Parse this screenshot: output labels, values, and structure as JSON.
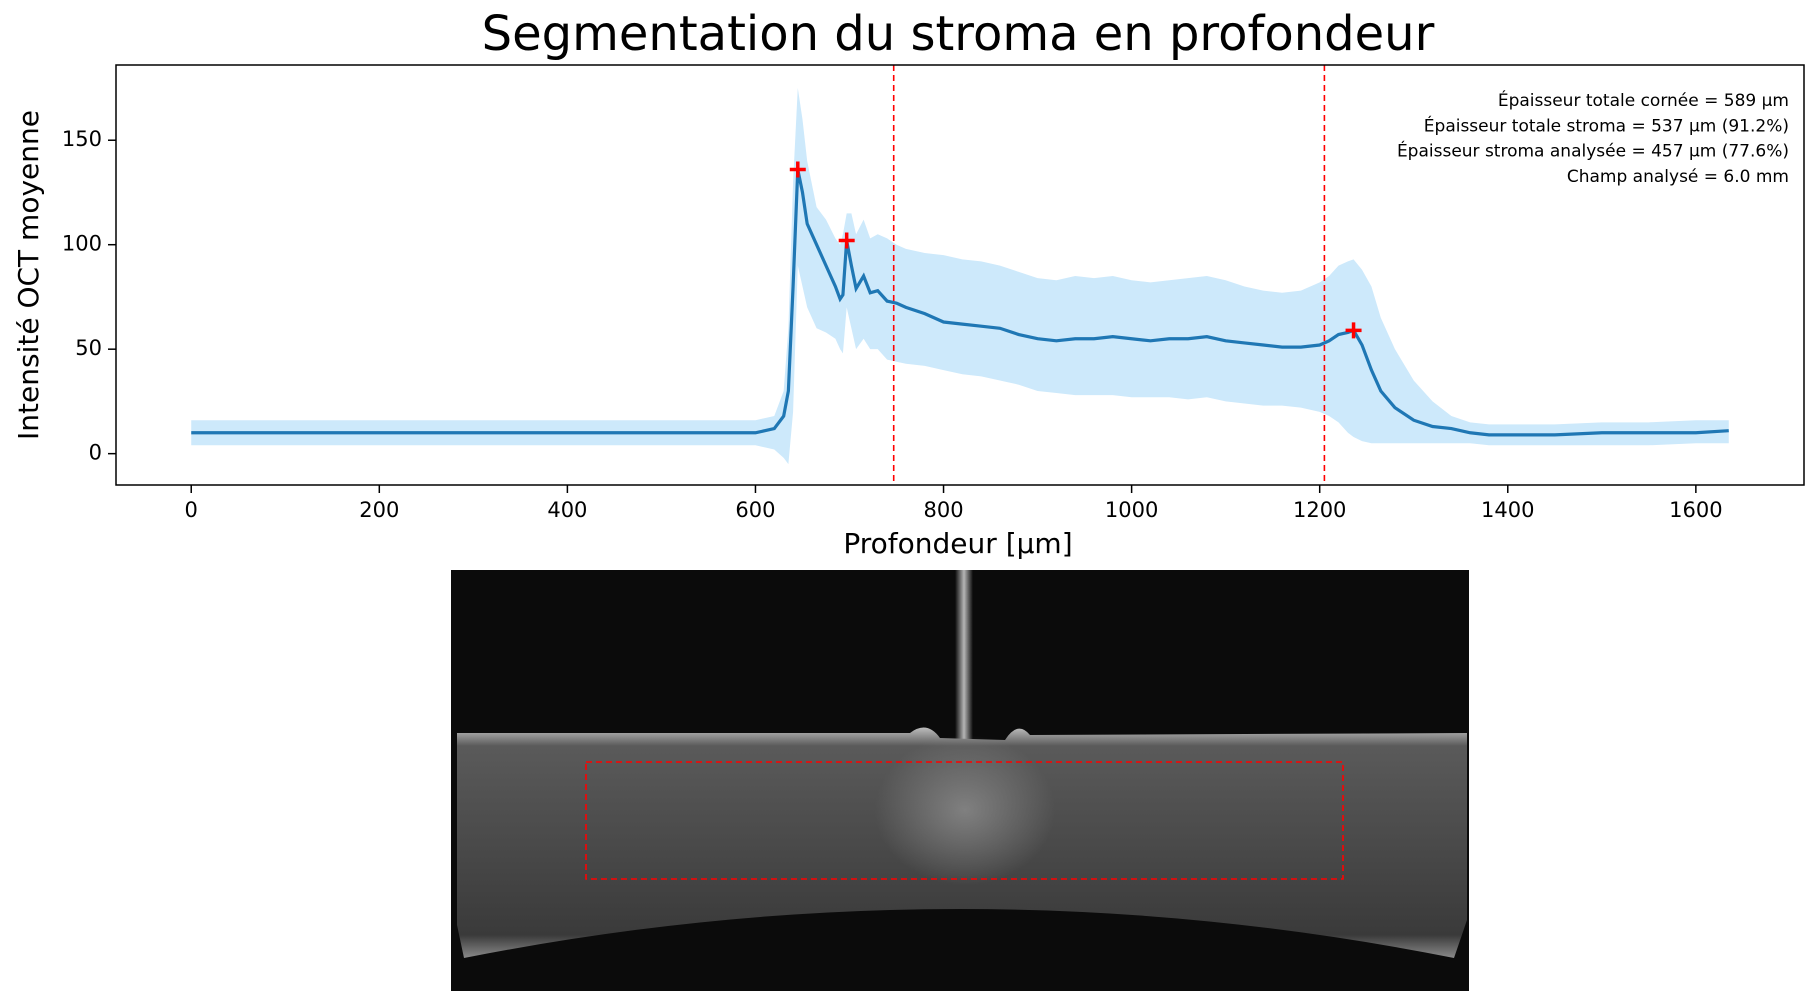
{
  "chart_data": {
    "type": "line",
    "title": "Segmentation du stroma en profondeur",
    "xlabel": "Profondeur [µm]",
    "ylabel": "Intensité OCT moyenne",
    "annotations": [
      "Épaisseur totale cornée = 589 µm",
      "Épaisseur totale stroma = 537 µm (91.2%)",
      "Épaisseur stroma analysée = 457 µm (77.6%)",
      "Champ analysé = 6.0 mm"
    ],
    "x": [
      0,
      20,
      40,
      60,
      80,
      100,
      120,
      140,
      160,
      180,
      200,
      220,
      240,
      260,
      280,
      300,
      320,
      340,
      360,
      380,
      400,
      420,
      440,
      460,
      480,
      500,
      520,
      540,
      560,
      580,
      600,
      610,
      620,
      630,
      635,
      640,
      645,
      650,
      655,
      665,
      675,
      685,
      690,
      693,
      697,
      702,
      707,
      715,
      722,
      730,
      740,
      750,
      760,
      780,
      800,
      820,
      840,
      860,
      880,
      900,
      920,
      940,
      960,
      980,
      1000,
      1020,
      1040,
      1060,
      1080,
      1100,
      1120,
      1140,
      1160,
      1180,
      1200,
      1210,
      1220,
      1230,
      1236,
      1245,
      1255,
      1265,
      1280,
      1300,
      1320,
      1340,
      1360,
      1380,
      1400,
      1450,
      1500,
      1550,
      1600,
      1635
    ],
    "series": [
      {
        "color": "#1f77b4",
        "values": [
          10,
          10,
          10,
          10,
          10,
          10,
          10,
          10,
          10,
          10,
          10,
          10,
          10,
          10,
          10,
          10,
          10,
          10,
          10,
          10,
          10,
          10,
          10,
          10,
          10,
          10,
          10,
          10,
          10,
          10,
          10,
          11,
          12,
          18,
          30,
          80,
          136,
          125,
          110,
          100,
          90,
          80,
          74,
          76,
          102,
          90,
          79,
          85,
          77,
          78,
          73,
          72,
          70,
          67,
          63,
          62,
          61,
          60,
          57,
          55,
          54,
          55,
          55,
          56,
          55,
          54,
          55,
          55,
          56,
          54,
          53,
          52,
          51,
          51,
          52,
          54,
          57,
          58,
          59,
          52,
          40,
          30,
          22,
          16,
          13,
          12,
          10,
          9,
          9,
          9,
          10,
          10,
          10,
          11
        ]
      }
    ],
    "band": {
      "color": "#cde9fb",
      "lower": [
        4,
        4,
        4,
        4,
        4,
        4,
        4,
        4,
        4,
        4,
        4,
        4,
        4,
        4,
        4,
        4,
        4,
        4,
        4,
        4,
        4,
        4,
        4,
        4,
        4,
        4,
        4,
        4,
        4,
        4,
        4,
        3,
        2,
        -2,
        -5,
        20,
        90,
        80,
        70,
        60,
        58,
        55,
        50,
        48,
        70,
        60,
        50,
        55,
        50,
        50,
        45,
        44,
        43,
        42,
        40,
        38,
        37,
        35,
        33,
        30,
        29,
        28,
        28,
        28,
        27,
        27,
        27,
        26,
        27,
        25,
        24,
        23,
        23,
        22,
        20,
        18,
        15,
        10,
        8,
        6,
        5,
        5,
        5,
        5,
        5,
        5,
        5,
        4,
        4,
        4,
        4,
        4,
        5,
        5
      ],
      "upper": [
        16,
        16,
        16,
        16,
        16,
        16,
        16,
        16,
        16,
        16,
        16,
        16,
        16,
        16,
        16,
        16,
        16,
        16,
        16,
        16,
        16,
        16,
        16,
        16,
        16,
        16,
        16,
        16,
        16,
        16,
        16,
        17,
        18,
        30,
        60,
        130,
        175,
        160,
        140,
        118,
        112,
        103,
        100,
        105,
        115,
        115,
        105,
        112,
        103,
        105,
        103,
        100,
        98,
        96,
        95,
        93,
        92,
        90,
        87,
        84,
        83,
        85,
        84,
        85,
        83,
        82,
        83,
        84,
        85,
        83,
        80,
        78,
        77,
        78,
        82,
        85,
        90,
        92,
        93,
        88,
        80,
        65,
        50,
        35,
        25,
        18,
        15,
        14,
        14,
        14,
        15,
        15,
        16,
        16
      ]
    },
    "markers": {
      "color": "#ff0000",
      "x": [
        645,
        697,
        1236
      ],
      "y": [
        136,
        102,
        59
      ]
    },
    "vlines": [
      747,
      1205
    ],
    "vline_color": "#ff0000",
    "xlim": [
      -80,
      1715
    ],
    "ylim": [
      -15,
      186
    ],
    "xticks": [
      0,
      200,
      400,
      600,
      800,
      1000,
      1200,
      1400,
      1600
    ],
    "yticks": [
      0,
      50,
      100,
      150
    ],
    "grid": false
  }
}
